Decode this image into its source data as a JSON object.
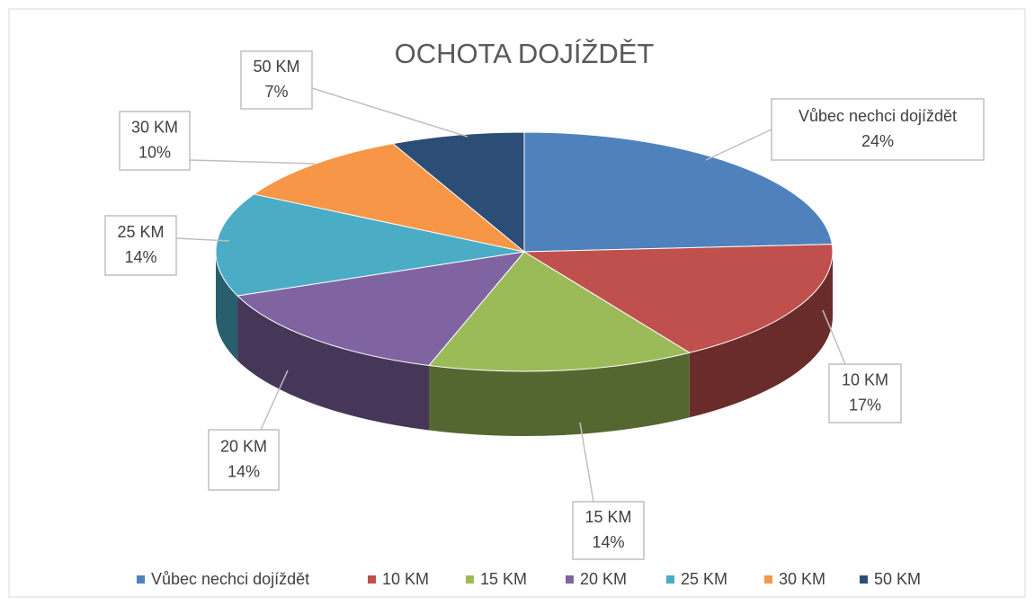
{
  "chart_data": {
    "type": "pie3d",
    "title": "OCHOTA DOJÍŽDĚT",
    "categories": [
      "Vůbec nechci dojíždět",
      "10 KM",
      "15 KM",
      "20 KM",
      "25 KM",
      "30 KM",
      "50 KM"
    ],
    "values": [
      24,
      17,
      14,
      14,
      14,
      10,
      7
    ],
    "value_labels": [
      "24%",
      "17%",
      "14%",
      "14%",
      "14%",
      "10%",
      "7%"
    ],
    "colors": [
      "#4f81bd",
      "#c0504d",
      "#9bbb59",
      "#8064a2",
      "#4bacc6",
      "#f79646",
      "#2c4d75"
    ],
    "legend": "bottom"
  }
}
